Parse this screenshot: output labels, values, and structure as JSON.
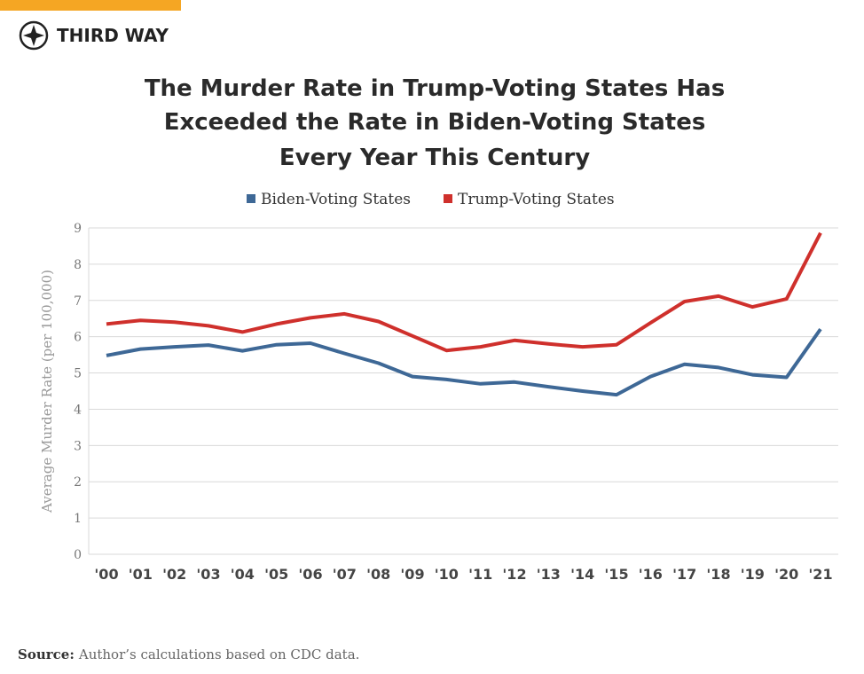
{
  "brand": "THIRD WAY",
  "chart_data": {
    "type": "line",
    "title": [
      "The Murder Rate in Trump-Voting States Has",
      "Exceeded the Rate in Biden-Voting States",
      "Every Year This Century"
    ],
    "ylabel": "Average Murder Rate (per 100,000)",
    "categories": [
      "'00",
      "'01",
      "'02",
      "'03",
      "'04",
      "'05",
      "'06",
      "'07",
      "'08",
      "'09",
      "'10",
      "'11",
      "'12",
      "'13",
      "'14",
      "'15",
      "'16",
      "'17",
      "'18",
      "'19",
      "'20",
      "'21"
    ],
    "series": [
      {
        "name": "Biden-Voting States",
        "color": "#3e6896",
        "values": [
          5.48,
          5.66,
          5.72,
          5.77,
          5.61,
          5.78,
          5.82,
          5.54,
          5.27,
          4.9,
          4.82,
          4.7,
          4.75,
          4.62,
          4.5,
          4.4,
          4.9,
          5.24,
          5.15,
          4.95,
          4.88,
          6.21
        ]
      },
      {
        "name": "Trump-Voting States",
        "color": "#cf302c",
        "values": [
          6.35,
          6.45,
          6.4,
          6.3,
          6.13,
          6.35,
          6.52,
          6.63,
          6.42,
          6.02,
          5.62,
          5.72,
          5.9,
          5.8,
          5.72,
          5.78,
          6.38,
          6.97,
          7.12,
          6.82,
          7.04,
          8.86
        ]
      }
    ],
    "ylim": [
      0,
      9
    ],
    "yticks": [
      0,
      1,
      2,
      3,
      4,
      5,
      6,
      7,
      8,
      9
    ],
    "grid": true,
    "legend": "top"
  },
  "source_label": "Source:",
  "source_text": "Author’s calculations based on CDC data."
}
